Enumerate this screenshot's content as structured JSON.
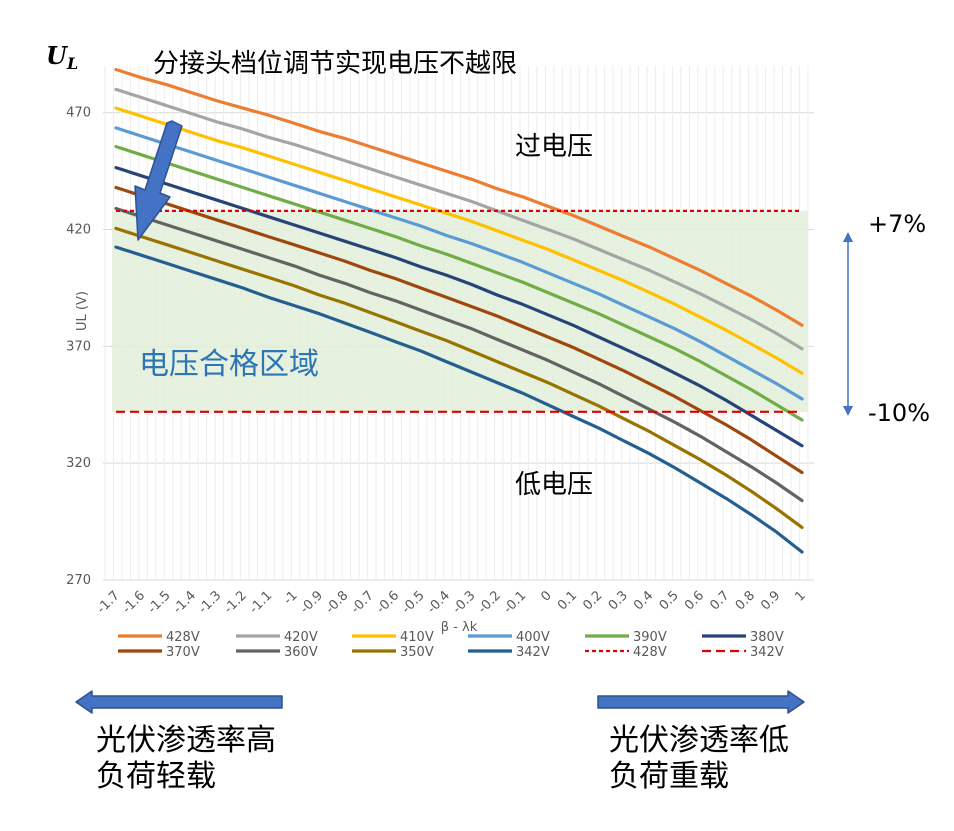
{
  "chart_data": {
    "type": "line",
    "title": "分接头档位调节实现电压不越限",
    "corner_label": "U",
    "corner_sub": "L",
    "xlabel": "β - λk",
    "ylabel": "UL (V)",
    "ylim": [
      270,
      490
    ],
    "y_ticks": [
      270,
      320,
      370,
      420,
      470
    ],
    "grid": true,
    "legend_position": "bottom",
    "x": [
      "-1.7",
      "-1.6",
      "-1.5",
      "-1.4",
      "-1.3",
      "-1.2",
      "-1.1",
      "-1",
      "-0.9",
      "-0.8",
      "-0.7",
      "-0.6",
      "-0.5",
      "-0.4",
      "-0.3",
      "-0.2",
      "-0.1",
      "0",
      "0.1",
      "0.2",
      "0.3",
      "0.4",
      "0.5",
      "0.6",
      "0.7",
      "0.8",
      "0.9",
      "1"
    ],
    "series": [
      {
        "name": "428V",
        "color": "#ED7D31",
        "style": "solid",
        "values": [
          488.5,
          485,
          482,
          478.5,
          475,
          472,
          469,
          465.5,
          462,
          459,
          455.5,
          452,
          448.5,
          445,
          441.5,
          437.5,
          434,
          430,
          426,
          421.5,
          417,
          412.5,
          407.5,
          402.5,
          397,
          391.5,
          385.5,
          379
        ]
      },
      {
        "name": "420V",
        "color": "#A5A5A5",
        "style": "solid",
        "values": [
          480,
          476.5,
          473,
          469.5,
          466,
          463,
          459.5,
          456.5,
          453,
          449.5,
          446,
          442.5,
          439,
          435.5,
          432,
          428,
          424,
          420,
          416,
          411.5,
          407,
          402.5,
          397.5,
          392.5,
          387,
          381.5,
          375.5,
          369
        ]
      },
      {
        "name": "410V",
        "color": "#FFC000",
        "style": "solid",
        "values": [
          472,
          468.5,
          465,
          461.5,
          458,
          455,
          451.5,
          448,
          444.5,
          441,
          437.5,
          434,
          430.5,
          427,
          423.5,
          419.5,
          415.5,
          411.5,
          407,
          402.5,
          398,
          393,
          388,
          382.5,
          377,
          371,
          365,
          358.5
        ]
      },
      {
        "name": "400V",
        "color": "#5B9BD5",
        "style": "solid",
        "values": [
          463.5,
          460,
          456.5,
          453,
          449.5,
          446,
          442.5,
          439,
          435.5,
          432,
          428.5,
          425,
          421.5,
          417.5,
          414,
          410,
          406,
          401.5,
          397,
          392.5,
          387.5,
          382.5,
          377.5,
          372,
          366,
          360,
          354,
          347.5
        ]
      },
      {
        "name": "390V",
        "color": "#70AD47",
        "style": "solid",
        "values": [
          455.5,
          452,
          448.5,
          445,
          441.5,
          438,
          434.5,
          431,
          427.5,
          424,
          420.5,
          417,
          413,
          409.5,
          405.5,
          401.5,
          397.5,
          393,
          388.5,
          384,
          379,
          374,
          369,
          363.5,
          357.5,
          351.5,
          345,
          338.5
        ]
      },
      {
        "name": "380V",
        "color": "#264478",
        "style": "solid",
        "values": [
          446.5,
          443,
          439.5,
          436,
          432.5,
          429,
          425.5,
          422,
          418.5,
          415,
          411.5,
          408,
          404,
          400.5,
          396.5,
          392,
          388,
          383.5,
          379,
          374,
          369,
          364,
          358.5,
          353,
          347,
          340.5,
          334,
          327.5
        ]
      },
      {
        "name": "370V",
        "color": "#9E480E",
        "style": "solid",
        "values": [
          438,
          434.5,
          431,
          427.5,
          424,
          420.5,
          417,
          413.5,
          410,
          406.5,
          402.5,
          399,
          395,
          391,
          387,
          383,
          378.5,
          374,
          369.5,
          364.5,
          359.5,
          354,
          348.5,
          342.5,
          336.5,
          330,
          323,
          316
        ]
      },
      {
        "name": "360V",
        "color": "#636363",
        "style": "solid",
        "values": [
          429,
          425.5,
          422,
          418.5,
          415,
          411.5,
          408,
          404.5,
          400.5,
          397,
          393,
          389.5,
          385.5,
          381.5,
          377.5,
          373,
          368.5,
          364,
          359,
          354,
          348.5,
          343,
          337.5,
          331.5,
          325,
          318.5,
          311.5,
          304
        ]
      },
      {
        "name": "350V",
        "color": "#997300",
        "style": "solid",
        "values": [
          420.5,
          417,
          413.5,
          410,
          406.5,
          403,
          399.5,
          396,
          392,
          388.5,
          384.5,
          380.5,
          376.5,
          372.5,
          368,
          363.5,
          359,
          354.5,
          349.5,
          344.5,
          339,
          333.5,
          327.5,
          321.5,
          315,
          308,
          300.5,
          292.5
        ]
      },
      {
        "name": "342V",
        "color": "#255E91",
        "style": "solid",
        "values": [
          412.5,
          409,
          405.5,
          402,
          398.5,
          395,
          391,
          387.5,
          384,
          380,
          376,
          372,
          368,
          363.5,
          359,
          354.5,
          350,
          345,
          340,
          335,
          329.5,
          324,
          318,
          311.5,
          305,
          298,
          290.5,
          282
        ]
      },
      {
        "name": "428V",
        "color": "#E00000",
        "style": "dotted",
        "values": [
          428,
          428,
          428,
          428,
          428,
          428,
          428,
          428,
          428,
          428,
          428,
          428,
          428,
          428,
          428,
          428,
          428,
          428,
          428,
          428,
          428,
          428,
          428,
          428,
          428,
          428,
          428,
          428
        ]
      },
      {
        "name": "342V",
        "color": "#E00000",
        "style": "dashed",
        "values": [
          342,
          342,
          342,
          342,
          342,
          342,
          342,
          342,
          342,
          342,
          342,
          342,
          342,
          342,
          342,
          342,
          342,
          342,
          342,
          342,
          342,
          342,
          342,
          342,
          342,
          342,
          342,
          342
        ]
      }
    ],
    "annotations": {
      "overvoltage": "过电压",
      "qualified_zone": "电压合格区域",
      "undervoltage": "低电压",
      "upper_pct": "+7%",
      "lower_pct": "-10%",
      "left_caption_line1": "光伏渗透率高",
      "left_caption_line2": "负荷轻载",
      "right_caption_line1": "光伏渗透率低",
      "right_caption_line2": "负荷重载"
    },
    "colors": {
      "zone_fill": "#E2EFD9",
      "arrow_fill": "#4472C4",
      "arrow_stroke": "#2F528F",
      "zone_text": "#2E75B6"
    }
  }
}
